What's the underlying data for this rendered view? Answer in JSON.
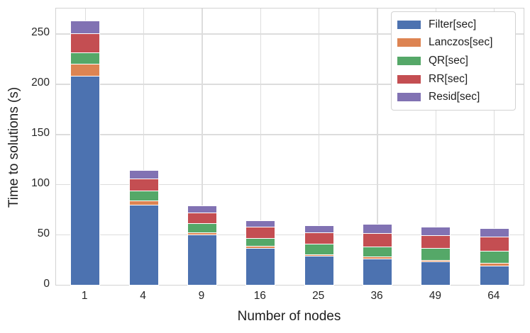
{
  "chart_data": {
    "type": "bar",
    "stacked": true,
    "title": "",
    "xlabel": "Number of nodes",
    "ylabel": "Time to solutions (s)",
    "categories": [
      "1",
      "4",
      "9",
      "16",
      "25",
      "36",
      "49",
      "64"
    ],
    "yticks": [
      0,
      50,
      100,
      150,
      200,
      250
    ],
    "ylim": [
      0,
      275
    ],
    "grid": true,
    "legend_position": "upper right",
    "series": [
      {
        "name": "Filter[sec]",
        "color": "#4C72B0",
        "values": [
          208,
          79.5,
          50,
          37,
          29,
          26,
          23,
          19
        ]
      },
      {
        "name": "Lanczos[sec]",
        "color": "#DD8452",
        "values": [
          12,
          4.5,
          2.5,
          2,
          1.5,
          2.5,
          1.5,
          3
        ]
      },
      {
        "name": "QR[sec]",
        "color": "#55A868",
        "values": [
          11,
          9.5,
          9,
          7.5,
          10.5,
          9.5,
          12,
          12
        ]
      },
      {
        "name": "RR[sec]",
        "color": "#C44E52",
        "values": [
          19,
          12.5,
          10.5,
          11,
          11,
          13.5,
          13,
          14
        ]
      },
      {
        "name": "Resid[sec]",
        "color": "#8172B3",
        "values": [
          12,
          7.5,
          6,
          6,
          6.5,
          8.5,
          7.5,
          8
        ]
      }
    ]
  },
  "colors": {
    "background": "#ffffff",
    "gridline": "#dddddd",
    "spine": "#d2d2d2",
    "text": "#262626"
  }
}
